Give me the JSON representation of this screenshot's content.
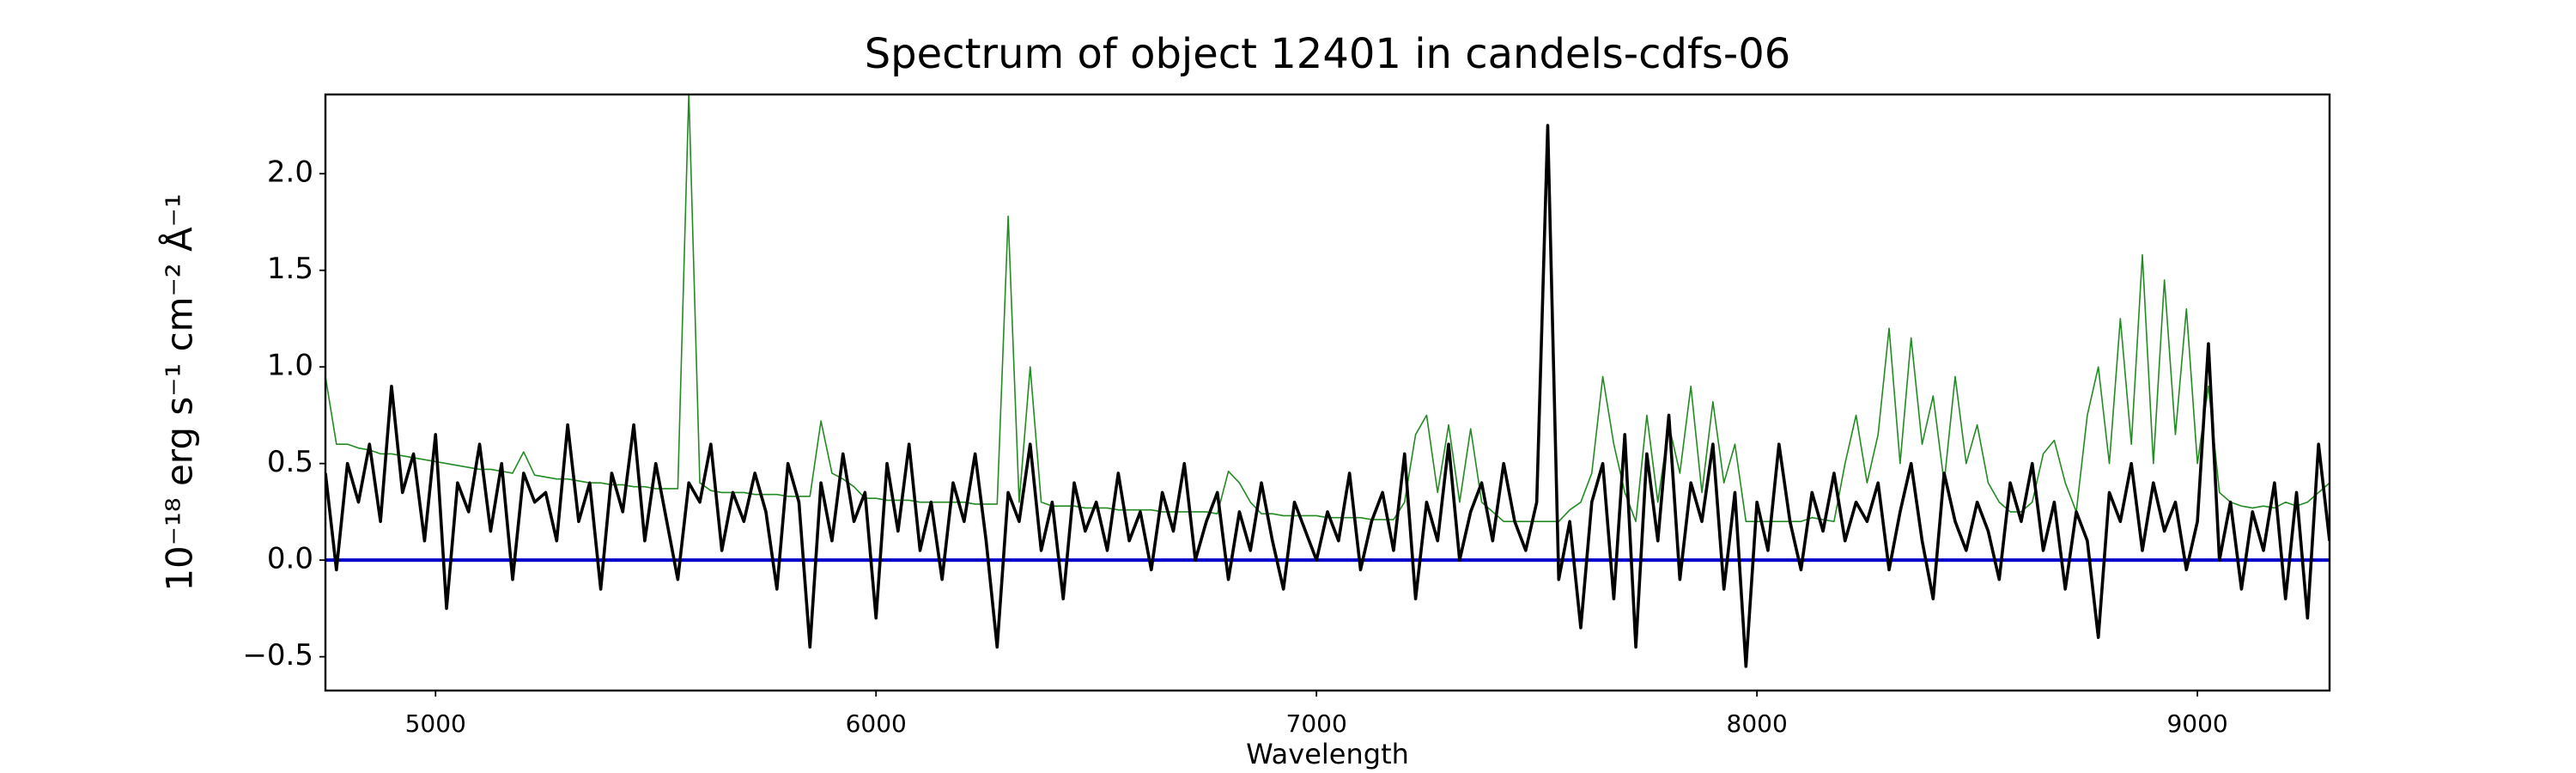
{
  "chart_data": {
    "type": "line",
    "title": "Spectrum of object 12401 in candels-cdfs-06",
    "x_label": "Wavelength",
    "y_label": "10⁻¹⁸ erg s⁻¹ cm⁻² Å⁻¹",
    "xlim": [
      4750,
      9300
    ],
    "ylim": [
      -0.675,
      2.41
    ],
    "xticks": [
      5000,
      6000,
      7000,
      8000,
      9000
    ],
    "yticks": [
      {
        "value": -0.5,
        "label": "−0.5"
      },
      {
        "value": 0,
        "label": "0.0"
      },
      0.5,
      {
        "value": 1,
        "label": "1.0"
      },
      1.5,
      {
        "value": 2,
        "label": "2.0"
      }
    ],
    "x": [
      4750,
      4775,
      4800,
      4825,
      4850,
      4875,
      4900,
      4925,
      4950,
      4975,
      5000,
      5025,
      5050,
      5075,
      5100,
      5125,
      5150,
      5175,
      5200,
      5225,
      5250,
      5275,
      5300,
      5325,
      5350,
      5375,
      5400,
      5425,
      5450,
      5475,
      5500,
      5525,
      5550,
      5575,
      5600,
      5625,
      5650,
      5675,
      5700,
      5725,
      5750,
      5775,
      5800,
      5825,
      5850,
      5875,
      5900,
      5925,
      5950,
      5975,
      6000,
      6025,
      6050,
      6075,
      6100,
      6125,
      6150,
      6175,
      6200,
      6225,
      6250,
      6275,
      6300,
      6325,
      6350,
      6375,
      6400,
      6425,
      6450,
      6475,
      6500,
      6525,
      6550,
      6575,
      6600,
      6625,
      6650,
      6675,
      6700,
      6725,
      6750,
      6775,
      6800,
      6825,
      6850,
      6875,
      6900,
      6925,
      6950,
      6975,
      7000,
      7025,
      7050,
      7075,
      7100,
      7125,
      7150,
      7175,
      7200,
      7225,
      7250,
      7275,
      7300,
      7325,
      7350,
      7375,
      7400,
      7425,
      7450,
      7475,
      7500,
      7525,
      7550,
      7575,
      7600,
      7625,
      7650,
      7675,
      7700,
      7725,
      7750,
      7775,
      7800,
      7825,
      7850,
      7875,
      7900,
      7925,
      7950,
      7975,
      8000,
      8025,
      8050,
      8075,
      8100,
      8125,
      8150,
      8175,
      8200,
      8225,
      8250,
      8275,
      8300,
      8325,
      8350,
      8375,
      8400,
      8425,
      8450,
      8475,
      8500,
      8525,
      8550,
      8575,
      8600,
      8625,
      8650,
      8675,
      8700,
      8725,
      8750,
      8775,
      8800,
      8825,
      8850,
      8875,
      8900,
      8925,
      8950,
      8975,
      9000,
      9025,
      9050,
      9075,
      9100,
      9125,
      9150,
      9175,
      9200,
      9225,
      9250,
      9275,
      9300
    ],
    "series": [
      {
        "color": "#228b22",
        "width": 1.6,
        "values": [
          0.95,
          0.6,
          0.6,
          0.58,
          0.57,
          0.55,
          0.55,
          0.54,
          0.53,
          0.52,
          0.51,
          0.5,
          0.49,
          0.48,
          0.47,
          0.47,
          0.46,
          0.45,
          0.56,
          0.44,
          0.43,
          0.42,
          0.42,
          0.41,
          0.4,
          0.4,
          0.39,
          0.39,
          0.38,
          0.38,
          0.37,
          0.37,
          0.37,
          2.42,
          0.4,
          0.36,
          0.35,
          0.35,
          0.35,
          0.34,
          0.34,
          0.34,
          0.33,
          0.33,
          0.33,
          0.72,
          0.45,
          0.42,
          0.38,
          0.32,
          0.32,
          0.31,
          0.31,
          0.31,
          0.3,
          0.3,
          0.3,
          0.3,
          0.3,
          0.29,
          0.29,
          0.29,
          1.78,
          0.3,
          1.0,
          0.3,
          0.28,
          0.28,
          0.28,
          0.27,
          0.27,
          0.27,
          0.26,
          0.26,
          0.26,
          0.26,
          0.25,
          0.25,
          0.25,
          0.25,
          0.25,
          0.24,
          0.46,
          0.4,
          0.3,
          0.24,
          0.24,
          0.23,
          0.23,
          0.23,
          0.23,
          0.22,
          0.22,
          0.22,
          0.22,
          0.21,
          0.21,
          0.21,
          0.3,
          0.65,
          0.75,
          0.35,
          0.7,
          0.3,
          0.68,
          0.3,
          0.25,
          0.2,
          0.2,
          0.2,
          0.2,
          0.2,
          0.2,
          0.26,
          0.3,
          0.45,
          0.95,
          0.6,
          0.35,
          0.2,
          0.75,
          0.3,
          0.7,
          0.45,
          0.9,
          0.35,
          0.82,
          0.4,
          0.6,
          0.2,
          0.2,
          0.2,
          0.2,
          0.2,
          0.2,
          0.22,
          0.21,
          0.2,
          0.5,
          0.75,
          0.4,
          0.65,
          1.2,
          0.5,
          1.15,
          0.6,
          0.85,
          0.4,
          0.95,
          0.5,
          0.7,
          0.4,
          0.3,
          0.25,
          0.25,
          0.3,
          0.55,
          0.62,
          0.4,
          0.25,
          0.75,
          1.0,
          0.5,
          1.25,
          0.6,
          1.58,
          0.5,
          1.45,
          0.65,
          1.3,
          0.5,
          0.9,
          0.35,
          0.3,
          0.28,
          0.27,
          0.28,
          0.27,
          0.3,
          0.28,
          0.3,
          0.35,
          0.4
        ]
      },
      {
        "color": "#0000cd",
        "width": 4,
        "x": [
          4750,
          9300
        ],
        "values": [
          0,
          0
        ]
      },
      {
        "color": "#000000",
        "width": 3.6,
        "values": [
          0.45,
          -0.05,
          0.5,
          0.3,
          0.6,
          0.2,
          0.9,
          0.35,
          0.55,
          0.1,
          0.65,
          -0.25,
          0.4,
          0.25,
          0.6,
          0.15,
          0.5,
          -0.1,
          0.45,
          0.3,
          0.35,
          0.1,
          0.7,
          0.2,
          0.4,
          -0.15,
          0.45,
          0.25,
          0.7,
          0.1,
          0.5,
          0.2,
          -0.1,
          0.4,
          0.3,
          0.6,
          0.05,
          0.35,
          0.2,
          0.45,
          0.25,
          -0.15,
          0.5,
          0.3,
          -0.45,
          0.4,
          0.1,
          0.55,
          0.2,
          0.35,
          -0.3,
          0.5,
          0.15,
          0.6,
          0.05,
          0.3,
          -0.1,
          0.4,
          0.2,
          0.55,
          0.1,
          -0.45,
          0.35,
          0.2,
          0.6,
          0.05,
          0.3,
          -0.2,
          0.4,
          0.15,
          0.3,
          0.05,
          0.45,
          0.1,
          0.25,
          -0.05,
          0.35,
          0.15,
          0.5,
          0.0,
          0.2,
          0.35,
          -0.1,
          0.25,
          0.05,
          0.4,
          0.1,
          -0.15,
          0.3,
          0.15,
          0.0,
          0.25,
          0.1,
          0.45,
          -0.05,
          0.2,
          0.35,
          0.05,
          0.55,
          -0.2,
          0.3,
          0.1,
          0.6,
          0.0,
          0.25,
          0.4,
          0.1,
          0.5,
          0.2,
          0.05,
          0.3,
          2.25,
          -0.1,
          0.2,
          -0.35,
          0.3,
          0.5,
          -0.2,
          0.65,
          -0.45,
          0.55,
          0.1,
          0.75,
          -0.1,
          0.4,
          0.2,
          0.6,
          -0.15,
          0.35,
          -0.55,
          0.3,
          0.05,
          0.6,
          0.2,
          -0.05,
          0.35,
          0.15,
          0.45,
          0.1,
          0.3,
          0.2,
          0.4,
          -0.05,
          0.25,
          0.5,
          0.1,
          -0.2,
          0.45,
          0.2,
          0.05,
          0.3,
          0.15,
          -0.1,
          0.4,
          0.2,
          0.5,
          0.05,
          0.3,
          -0.15,
          0.25,
          0.1,
          -0.4,
          0.35,
          0.2,
          0.5,
          0.05,
          0.4,
          0.15,
          0.3,
          -0.05,
          0.2,
          1.12,
          0.0,
          0.3,
          -0.15,
          0.25,
          0.05,
          0.4,
          -0.2,
          0.35,
          -0.3,
          0.6,
          0.1
        ]
      }
    ]
  }
}
